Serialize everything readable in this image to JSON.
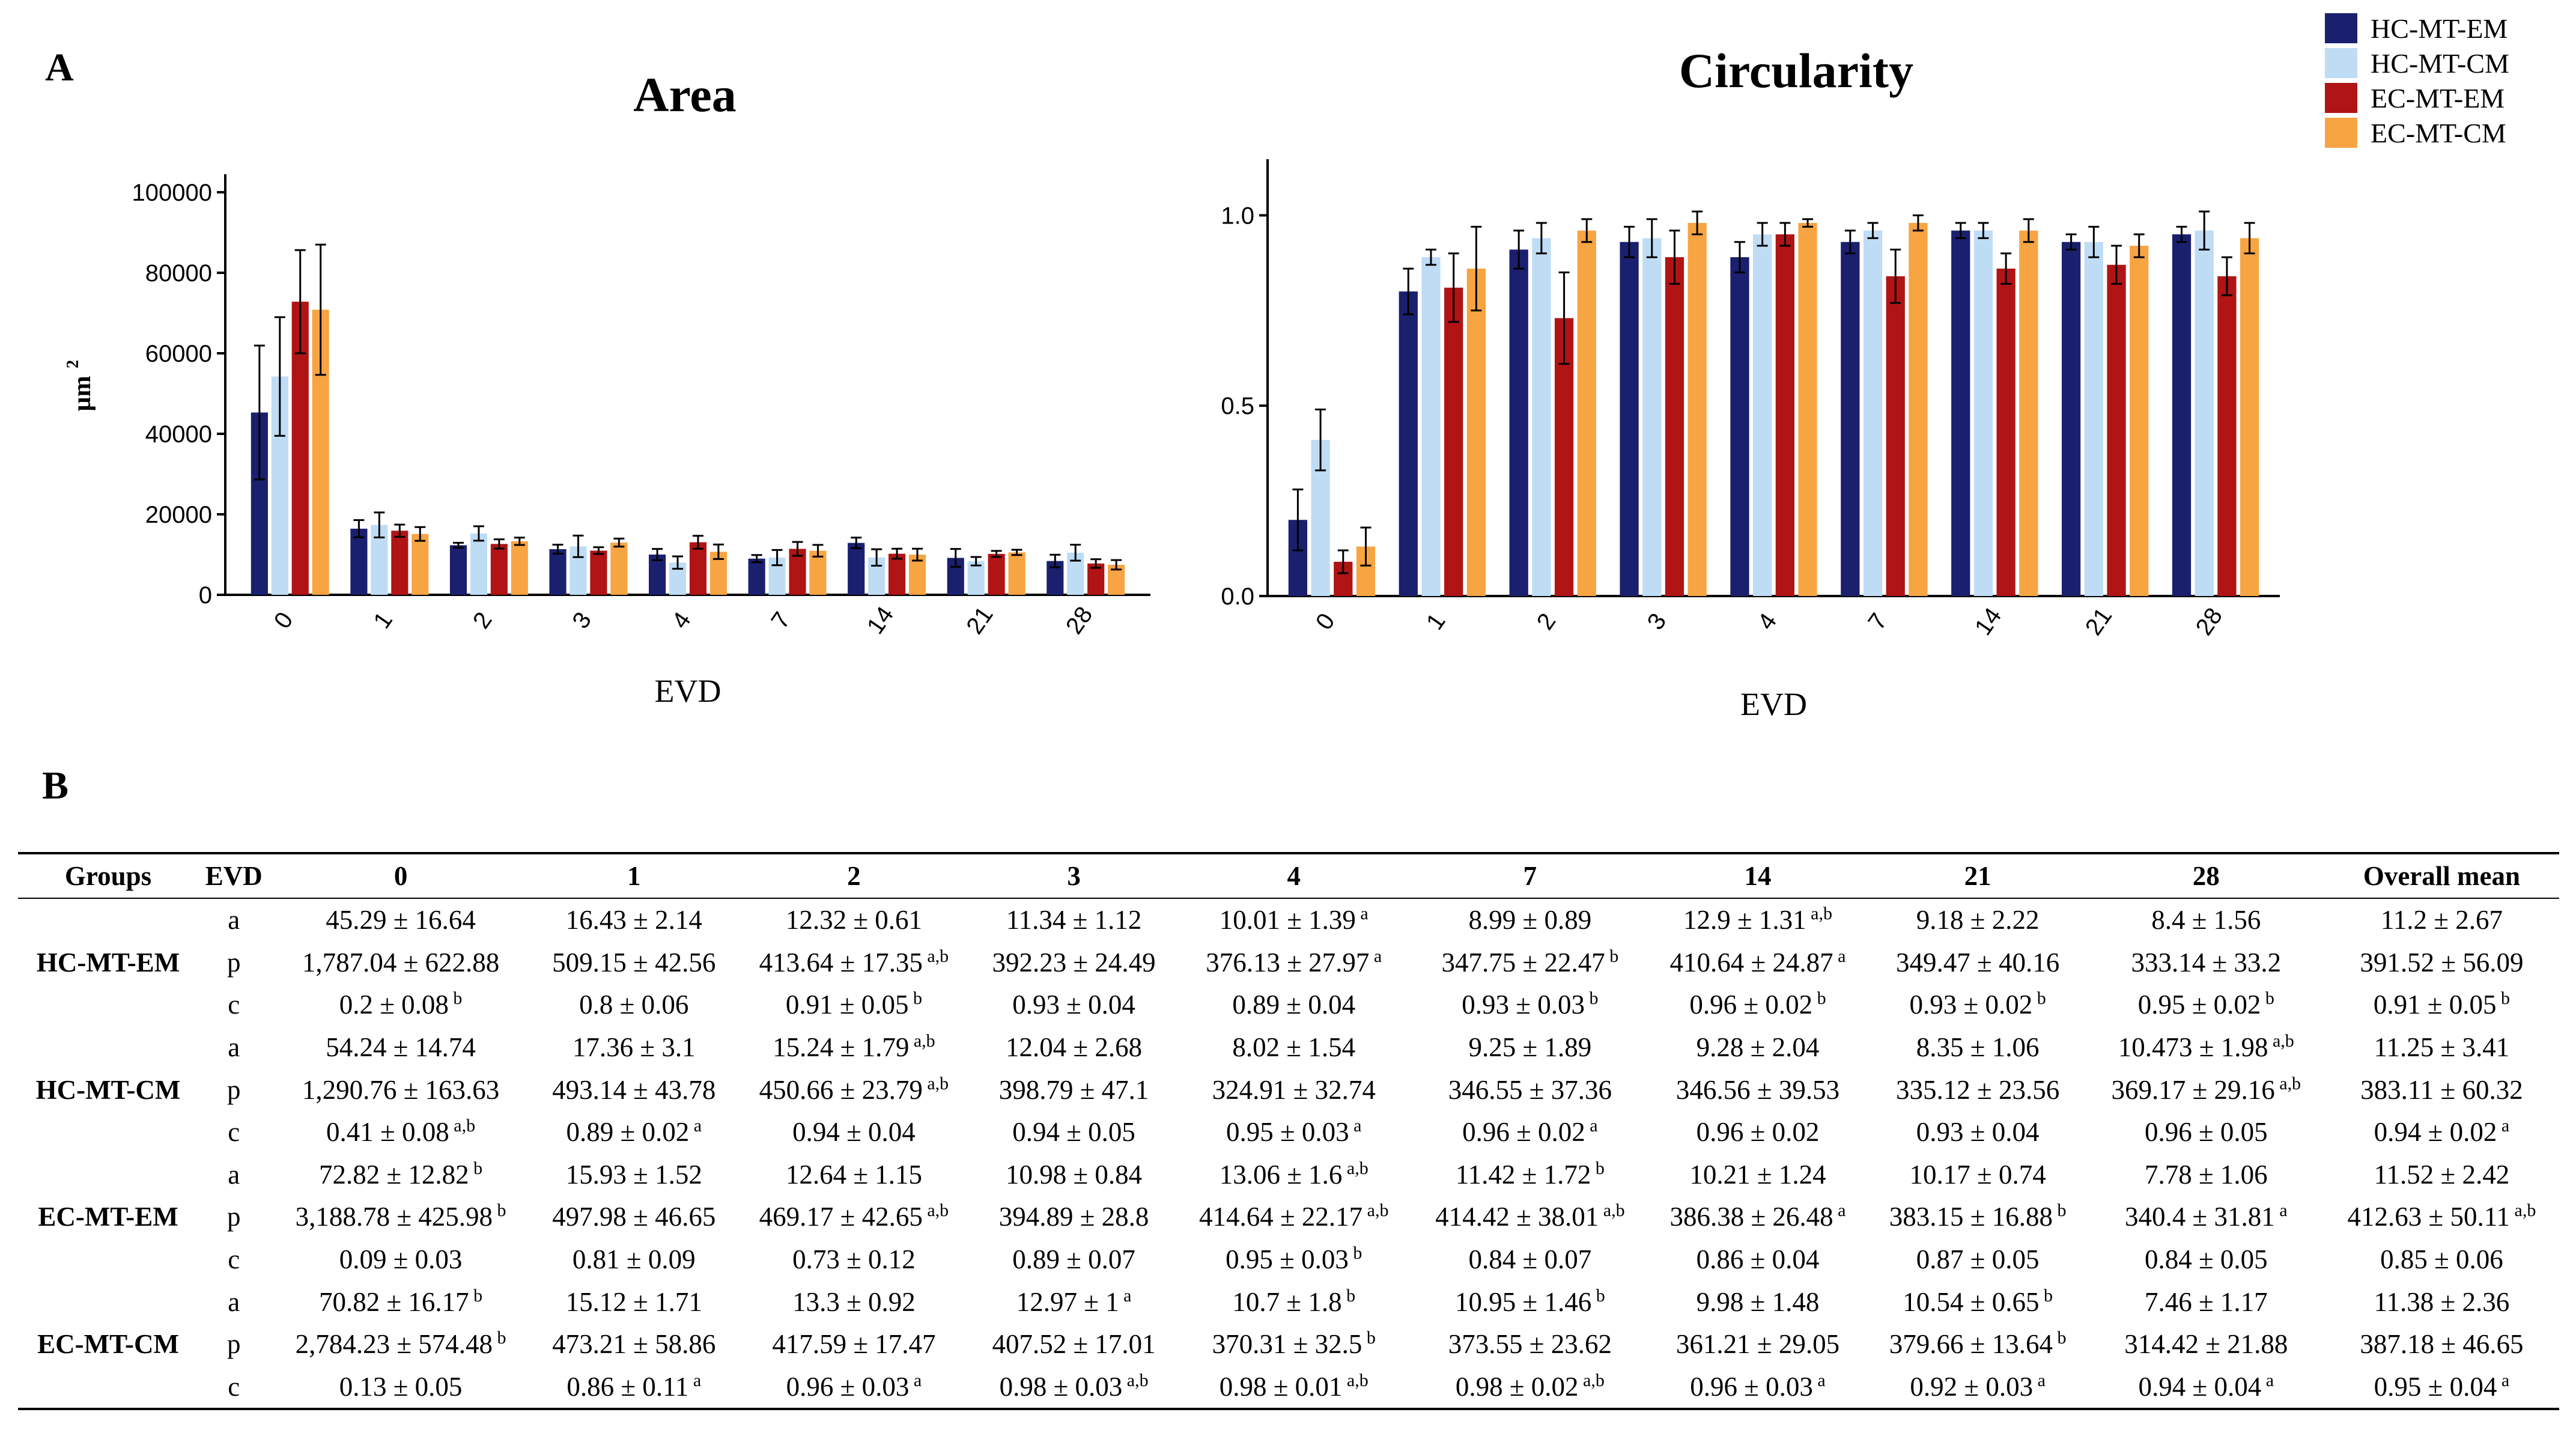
{
  "panels": {
    "a": "A",
    "b": "B"
  },
  "legend": [
    {
      "label": "HC-MT-EM",
      "color": "#1a1f6e"
    },
    {
      "label": "HC-MT-CM",
      "color": "#bfdcf5"
    },
    {
      "label": "EC-MT-EM",
      "color": "#b01414"
    },
    {
      "label": "EC-MT-CM",
      "color": "#f7a443"
    }
  ],
  "chart_data": [
    {
      "type": "bar",
      "title": "Area",
      "xlabel": "EVD",
      "ylabel": "µm",
      "ylabel_sup": "2",
      "ylim": [
        0,
        100000
      ],
      "yticks": [
        0,
        20000,
        40000,
        60000,
        80000,
        100000
      ],
      "ytick_labels": [
        "0",
        "20000",
        "40000",
        "60000",
        "80000",
        "100000"
      ],
      "categories": [
        "0",
        "1",
        "2",
        "3",
        "4",
        "7",
        "14",
        "21",
        "28"
      ],
      "series": [
        {
          "name": "HC-MT-EM",
          "values": [
            45290,
            16430,
            12320,
            11340,
            10010,
            8990,
            12900,
            9180,
            8400
          ],
          "errors": [
            16640,
            2140,
            610,
            1120,
            1390,
            890,
            1310,
            2220,
            1560
          ]
        },
        {
          "name": "HC-MT-CM",
          "values": [
            54240,
            17360,
            15240,
            12040,
            8020,
            9250,
            9280,
            8350,
            10473
          ],
          "errors": [
            14740,
            3100,
            1790,
            2680,
            1540,
            1890,
            2040,
            1060,
            1980
          ]
        },
        {
          "name": "EC-MT-EM",
          "values": [
            72820,
            15930,
            12640,
            10980,
            13060,
            11420,
            10210,
            10170,
            7780
          ],
          "errors": [
            12820,
            1520,
            1150,
            840,
            1600,
            1720,
            1240,
            740,
            1060
          ]
        },
        {
          "name": "EC-MT-CM",
          "values": [
            70820,
            15120,
            13300,
            12970,
            10700,
            10950,
            9980,
            10540,
            7460
          ],
          "errors": [
            16170,
            1710,
            920,
            1000,
            1800,
            1460,
            1480,
            650,
            1170
          ]
        }
      ]
    },
    {
      "type": "bar",
      "title": "Circularity",
      "xlabel": "EVD",
      "ylabel": "",
      "ylim": [
        0,
        1.1
      ],
      "yticks": [
        0,
        0.5,
        1.0
      ],
      "ytick_labels": [
        "0.0",
        "0.5",
        "1.0"
      ],
      "categories": [
        "0",
        "1",
        "2",
        "3",
        "4",
        "7",
        "14",
        "21",
        "28"
      ],
      "series": [
        {
          "name": "HC-MT-EM",
          "values": [
            0.2,
            0.8,
            0.91,
            0.93,
            0.89,
            0.93,
            0.96,
            0.93,
            0.95
          ],
          "errors": [
            0.08,
            0.06,
            0.05,
            0.04,
            0.04,
            0.03,
            0.02,
            0.02,
            0.02
          ]
        },
        {
          "name": "HC-MT-CM",
          "values": [
            0.41,
            0.89,
            0.94,
            0.94,
            0.95,
            0.96,
            0.96,
            0.93,
            0.96
          ],
          "errors": [
            0.08,
            0.02,
            0.04,
            0.05,
            0.03,
            0.02,
            0.02,
            0.04,
            0.05
          ]
        },
        {
          "name": "EC-MT-EM",
          "values": [
            0.09,
            0.81,
            0.73,
            0.89,
            0.95,
            0.84,
            0.86,
            0.87,
            0.84
          ],
          "errors": [
            0.03,
            0.09,
            0.12,
            0.07,
            0.03,
            0.07,
            0.04,
            0.05,
            0.05
          ]
        },
        {
          "name": "EC-MT-CM",
          "values": [
            0.13,
            0.86,
            0.96,
            0.98,
            0.98,
            0.98,
            0.96,
            0.92,
            0.94
          ],
          "errors": [
            0.05,
            0.11,
            0.03,
            0.03,
            0.01,
            0.02,
            0.03,
            0.03,
            0.04
          ]
        }
      ]
    }
  ],
  "table": {
    "headers": [
      "Groups",
      "EVD",
      "0",
      "1",
      "2",
      "3",
      "4",
      "7",
      "14",
      "21",
      "28",
      "Overall mean"
    ],
    "groups": [
      {
        "name": "HC-MT-EM",
        "rows": [
          {
            "param": "a",
            "cells": [
              [
                "45.29 ± 16.64",
                ""
              ],
              [
                "16.43 ± 2.14",
                ""
              ],
              [
                "12.32 ± 0.61",
                ""
              ],
              [
                "11.34 ± 1.12",
                ""
              ],
              [
                "10.01 ± 1.39",
                "a"
              ],
              [
                "8.99 ± 0.89",
                ""
              ],
              [
                "12.9 ± 1.31",
                "a,b"
              ],
              [
                "9.18 ± 2.22",
                ""
              ],
              [
                "8.4 ± 1.56",
                ""
              ],
              [
                "11.2 ± 2.67",
                ""
              ]
            ]
          },
          {
            "param": "p",
            "cells": [
              [
                "1,787.04 ± 622.88",
                ""
              ],
              [
                "509.15 ± 42.56",
                ""
              ],
              [
                "413.64 ± 17.35",
                "a,b"
              ],
              [
                "392.23 ± 24.49",
                ""
              ],
              [
                "376.13 ± 27.97",
                "a"
              ],
              [
                "347.75 ± 22.47",
                "b"
              ],
              [
                "410.64 ± 24.87",
                "a"
              ],
              [
                "349.47 ± 40.16",
                ""
              ],
              [
                "333.14 ± 33.2",
                ""
              ],
              [
                "391.52 ± 56.09",
                ""
              ]
            ]
          },
          {
            "param": "c",
            "cells": [
              [
                "0.2 ± 0.08",
                "b"
              ],
              [
                "0.8 ± 0.06",
                ""
              ],
              [
                "0.91 ± 0.05",
                "b"
              ],
              [
                "0.93 ± 0.04",
                ""
              ],
              [
                "0.89 ± 0.04",
                ""
              ],
              [
                "0.93 ± 0.03",
                "b"
              ],
              [
                "0.96 ± 0.02",
                "b"
              ],
              [
                "0.93 ± 0.02",
                "b"
              ],
              [
                "0.95 ± 0.02",
                "b"
              ],
              [
                "0.91 ± 0.05",
                "b"
              ]
            ]
          }
        ]
      },
      {
        "name": "HC-MT-CM",
        "rows": [
          {
            "param": "a",
            "cells": [
              [
                "54.24 ± 14.74",
                ""
              ],
              [
                "17.36 ± 3.1",
                ""
              ],
              [
                "15.24 ± 1.79",
                "a,b"
              ],
              [
                "12.04 ± 2.68",
                ""
              ],
              [
                "8.02 ± 1.54",
                ""
              ],
              [
                "9.25 ± 1.89",
                ""
              ],
              [
                "9.28 ± 2.04",
                ""
              ],
              [
                "8.35 ± 1.06",
                ""
              ],
              [
                "10.473 ± 1.98",
                "a,b"
              ],
              [
                "11.25 ± 3.41",
                ""
              ]
            ]
          },
          {
            "param": "p",
            "cells": [
              [
                "1,290.76 ± 163.63",
                ""
              ],
              [
                "493.14 ± 43.78",
                ""
              ],
              [
                "450.66 ± 23.79",
                "a,b"
              ],
              [
                "398.79 ± 47.1",
                ""
              ],
              [
                "324.91 ± 32.74",
                ""
              ],
              [
                "346.55 ± 37.36",
                ""
              ],
              [
                "346.56 ± 39.53",
                ""
              ],
              [
                "335.12 ± 23.56",
                ""
              ],
              [
                "369.17 ± 29.16",
                "a,b"
              ],
              [
                "383.11 ± 60.32",
                ""
              ]
            ]
          },
          {
            "param": "c",
            "cells": [
              [
                "0.41 ± 0.08",
                "a,b"
              ],
              [
                "0.89 ± 0.02",
                "a"
              ],
              [
                "0.94 ± 0.04",
                ""
              ],
              [
                "0.94 ± 0.05",
                ""
              ],
              [
                "0.95 ± 0.03",
                "a"
              ],
              [
                "0.96 ± 0.02",
                "a"
              ],
              [
                "0.96 ± 0.02",
                ""
              ],
              [
                "0.93 ± 0.04",
                ""
              ],
              [
                "0.96 ± 0.05",
                ""
              ],
              [
                "0.94 ± 0.02",
                "a"
              ]
            ]
          }
        ]
      },
      {
        "name": "EC-MT-EM",
        "rows": [
          {
            "param": "a",
            "cells": [
              [
                "72.82 ± 12.82",
                "b"
              ],
              [
                "15.93 ± 1.52",
                ""
              ],
              [
                "12.64 ± 1.15",
                ""
              ],
              [
                "10.98 ± 0.84",
                ""
              ],
              [
                "13.06 ± 1.6",
                "a,b"
              ],
              [
                "11.42 ± 1.72",
                "b"
              ],
              [
                "10.21 ± 1.24",
                ""
              ],
              [
                "10.17 ± 0.74",
                ""
              ],
              [
                "7.78 ± 1.06",
                ""
              ],
              [
                "11.52 ± 2.42",
                ""
              ]
            ]
          },
          {
            "param": "p",
            "cells": [
              [
                "3,188.78 ± 425.98",
                "b"
              ],
              [
                "497.98 ± 46.65",
                ""
              ],
              [
                "469.17 ± 42.65",
                "a,b"
              ],
              [
                "394.89 ± 28.8",
                ""
              ],
              [
                "414.64 ± 22.17",
                "a,b"
              ],
              [
                "414.42 ± 38.01",
                "a,b"
              ],
              [
                "386.38 ± 26.48",
                "a"
              ],
              [
                "383.15 ± 16.88",
                "b"
              ],
              [
                "340.4 ± 31.81",
                "a"
              ],
              [
                "412.63 ± 50.11",
                "a,b"
              ]
            ]
          },
          {
            "param": "c",
            "cells": [
              [
                "0.09 ± 0.03",
                ""
              ],
              [
                "0.81 ± 0.09",
                ""
              ],
              [
                "0.73 ± 0.12",
                ""
              ],
              [
                "0.89 ± 0.07",
                ""
              ],
              [
                "0.95 ± 0.03",
                "b"
              ],
              [
                "0.84 ± 0.07",
                ""
              ],
              [
                "0.86 ± 0.04",
                ""
              ],
              [
                "0.87 ± 0.05",
                ""
              ],
              [
                "0.84 ± 0.05",
                ""
              ],
              [
                "0.85 ± 0.06",
                ""
              ]
            ]
          }
        ]
      },
      {
        "name": "EC-MT-CM",
        "rows": [
          {
            "param": "a",
            "cells": [
              [
                "70.82 ± 16.17",
                "b"
              ],
              [
                "15.12 ± 1.71",
                ""
              ],
              [
                "13.3 ± 0.92",
                ""
              ],
              [
                "12.97 ± 1",
                "a"
              ],
              [
                "10.7 ± 1.8",
                "b"
              ],
              [
                "10.95 ± 1.46",
                "b"
              ],
              [
                "9.98 ± 1.48",
                ""
              ],
              [
                "10.54 ± 0.65",
                "b"
              ],
              [
                "7.46 ± 1.17",
                ""
              ],
              [
                "11.38 ± 2.36",
                ""
              ]
            ]
          },
          {
            "param": "p",
            "cells": [
              [
                "2,784.23 ± 574.48",
                "b"
              ],
              [
                "473.21 ± 58.86",
                ""
              ],
              [
                "417.59 ± 17.47",
                ""
              ],
              [
                "407.52 ± 17.01",
                ""
              ],
              [
                "370.31 ± 32.5",
                "b"
              ],
              [
                "373.55 ± 23.62",
                ""
              ],
              [
                "361.21 ± 29.05",
                ""
              ],
              [
                "379.66 ± 13.64",
                "b"
              ],
              [
                "314.42 ± 21.88",
                ""
              ],
              [
                "387.18 ± 46.65",
                ""
              ]
            ]
          },
          {
            "param": "c",
            "cells": [
              [
                "0.13 ± 0.05",
                ""
              ],
              [
                "0.86 ± 0.11",
                "a"
              ],
              [
                "0.96 ± 0.03",
                "a"
              ],
              [
                "0.98 ± 0.03",
                "a,b"
              ],
              [
                "0.98 ± 0.01",
                "a,b"
              ],
              [
                "0.98 ± 0.02",
                "a,b"
              ],
              [
                "0.96 ± 0.03",
                "a"
              ],
              [
                "0.92 ± 0.03",
                "a"
              ],
              [
                "0.94 ± 0.04",
                "a"
              ],
              [
                "0.95 ± 0.04",
                "a"
              ]
            ]
          }
        ]
      }
    ]
  }
}
